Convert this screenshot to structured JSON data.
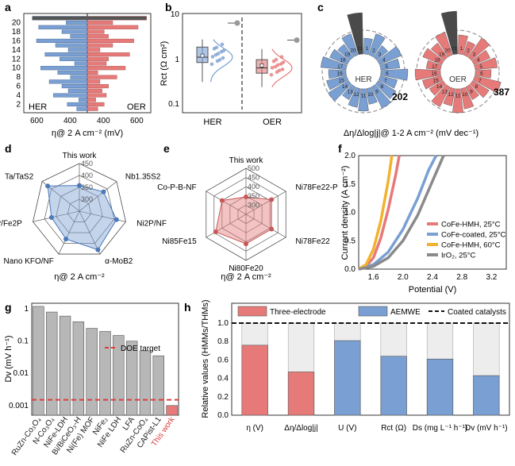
{
  "colors": {
    "red": "#e57a79",
    "blue": "#7a9fd2",
    "gray": "#b7b7b7",
    "dark": "#555555",
    "orange": "#f2b22d",
    "coatedgray": "#8a8a8a"
  },
  "panels": [
    "a",
    "b",
    "c",
    "d",
    "e",
    "f",
    "g",
    "h"
  ],
  "chart_data": [
    {
      "panel": "a",
      "type": "bar",
      "orientation": "horizontal",
      "title": "",
      "xlabel": "η@ 2 A cm⁻² (mV)",
      "ylabel": "",
      "ytick_labels": [
        "2",
        "4",
        "6",
        "8",
        "10",
        "12",
        "14",
        "16",
        "18",
        "20"
      ],
      "xtick_labels": [
        "600",
        "400",
        "400",
        "600"
      ],
      "series": [
        {
          "name": "HER",
          "values": [
            430,
            475,
            420,
            540,
            470,
            500,
            560,
            460,
            520,
            600,
            440,
            510,
            580,
            470,
            530,
            620,
            460,
            500,
            610,
            480,
            640
          ]
        },
        {
          "name": "OER",
          "values": [
            430,
            460,
            420,
            470,
            450,
            480,
            440,
            520,
            430,
            560,
            470,
            480,
            580,
            440,
            500,
            600,
            480,
            460,
            620,
            500,
            660
          ]
        }
      ],
      "annotations": [
        "HER",
        "OER"
      ]
    },
    {
      "panel": "b",
      "type": "scatter",
      "title": "",
      "ylabel": "Rct (Ω cm²)",
      "yscale": "log",
      "ylim": [
        0.1,
        10
      ],
      "ytick_labels": [
        "0.1",
        "1",
        "10"
      ],
      "categories": [
        "HER",
        "OER"
      ],
      "box": [
        {
          "name": "HER",
          "q1": 0.95,
          "median": 1.25,
          "q3": 2.1,
          "min": 0.35,
          "max": 3.1,
          "mean": 1.35
        },
        {
          "name": "OER",
          "q1": 0.55,
          "median": 0.72,
          "q3": 1.1,
          "min": 0.27,
          "max": 1.9,
          "mean": 0.82
        }
      ],
      "this_work": [
        {
          "name": "HER",
          "value": 7.2
        },
        {
          "name": "OER",
          "value": 3.0
        }
      ]
    },
    {
      "panel": "c",
      "type": "bar",
      "subtype": "radial",
      "title": "",
      "xlabel": "Δη/Δlog|j|@ 1-2 A cm⁻² (mV dec⁻¹)",
      "series": [
        {
          "name": "HER",
          "labels": [
            "1",
            "2",
            "3",
            "4",
            "5",
            "6",
            "7",
            "8",
            "9",
            "10",
            "11",
            "12",
            "13",
            "14",
            "15",
            "16",
            "17",
            "18",
            "19",
            "20",
            "21"
          ],
          "highlight": "202"
        },
        {
          "name": "OER",
          "labels": [
            "1",
            "2",
            "3",
            "4",
            "5",
            "6",
            "7",
            "8",
            "9",
            "10",
            "11",
            "12",
            "13",
            "14",
            "15",
            "16",
            "17",
            "18",
            "19",
            "20",
            "21"
          ],
          "highlight": "387"
        }
      ]
    },
    {
      "panel": "d",
      "type": "radar",
      "title": "",
      "xlabel": "η@ 2 A cm⁻²",
      "axes": [
        "This work",
        "Nb1.35S2",
        "Ni2P/NF",
        "α-MoB2",
        "Nano KFO/NF",
        "F-Co2P/Fe2P",
        "Ta/TaS2"
      ],
      "rticks": [
        "300",
        "350",
        "400",
        "450"
      ],
      "rlim": [
        250,
        450
      ],
      "values": [
        358,
        380,
        410,
        430,
        380,
        370,
        420
      ]
    },
    {
      "panel": "e",
      "type": "radar",
      "title": "",
      "xlabel": "η@ 2 A cm⁻²",
      "axes": [
        "This work",
        "Ni78Fe22-P",
        "Ni78Fe22",
        "Ni80Fe20",
        "Ni85Fe15",
        "Co-P-B-NF"
      ],
      "rticks": [
        "300",
        "350",
        "400",
        "450",
        "500"
      ],
      "rlim": [
        250,
        500
      ],
      "values": [
        345,
        410,
        410,
        410,
        440,
        400
      ]
    },
    {
      "panel": "f",
      "type": "line",
      "title": "",
      "xlabel": "Potential (V)",
      "ylabel": "Current density (A cm⁻²)",
      "xlim": [
        1.4,
        3.4
      ],
      "ylim": [
        0,
        2.0
      ],
      "xtick_labels": [
        "1.6",
        "2.0",
        "2.4",
        "2.8",
        "3.2"
      ],
      "ytick_labels": [
        "0.0",
        "0.5",
        "1.0",
        "1.5",
        "2.0"
      ],
      "series": [
        {
          "name": "CoFe-HMH, 25°C",
          "x": [
            1.4,
            1.5,
            1.6,
            1.7,
            1.8,
            1.9,
            1.95
          ],
          "y": [
            0.0,
            0.05,
            0.2,
            0.55,
            1.05,
            1.65,
            2.0
          ]
        },
        {
          "name": "CoFe-coated, 25°C",
          "x": [
            1.4,
            1.6,
            1.8,
            2.0,
            2.2,
            2.35,
            2.45
          ],
          "y": [
            0.0,
            0.08,
            0.3,
            0.7,
            1.25,
            1.75,
            2.0
          ]
        },
        {
          "name": "CoFe-HMH, 60°C",
          "x": [
            1.4,
            1.5,
            1.6,
            1.7,
            1.8,
            1.85
          ],
          "y": [
            0.0,
            0.08,
            0.35,
            0.85,
            1.55,
            2.0
          ]
        },
        {
          "name": "IrO₂, 25°C",
          "x": [
            1.4,
            1.6,
            1.8,
            2.0,
            2.2,
            2.4,
            2.55
          ],
          "y": [
            0.0,
            0.05,
            0.2,
            0.5,
            0.95,
            1.55,
            2.0
          ]
        }
      ]
    },
    {
      "panel": "g",
      "type": "bar",
      "title": "",
      "ylabel": "Dv (mV h⁻¹)",
      "yscale": "log",
      "ylim": [
        0.0005,
        1.5
      ],
      "ytick_labels": [
        "0.001",
        "0.01",
        "0.1",
        "1"
      ],
      "categories": [
        "RuZn-Co₃O₄",
        "N-Co₃O₄",
        "NiFe-LDH",
        "Bi/BiCeO₃-H",
        "Ni(Fe) MOF",
        "NiFe₂",
        "NiFe LDH",
        "LFA",
        "RuZn-CoO₄",
        "CAPist-L1",
        "This work"
      ],
      "values": [
        1.2,
        0.8,
        0.6,
        0.4,
        0.25,
        0.2,
        0.15,
        0.1,
        0.05,
        0.035,
        0.001
      ],
      "reference": {
        "name": "DOE target",
        "value": 0.0015
      }
    },
    {
      "panel": "h",
      "type": "bar",
      "title": "",
      "ylabel": "Relative values (HMMs/THMs)",
      "ylim": [
        0.0,
        1.0
      ],
      "ytick_labels": [
        "0.0",
        "0.2",
        "0.4",
        "0.6",
        "0.8",
        "1.0"
      ],
      "categories": [
        "η (V)",
        "Δη/Δlog|j|",
        "U (V)",
        "Rct (Ω)",
        "Ds (mg L⁻¹ h⁻¹)",
        "Dv (mV h⁻¹)"
      ],
      "values": [
        0.76,
        0.47,
        0.81,
        0.64,
        0.61,
        0.43
      ],
      "groups": [
        "Three-electrode",
        "Three-electrode",
        "AEMWE",
        "AEMWE",
        "AEMWE",
        "AEMWE"
      ],
      "legend": [
        "Three-electrode",
        "AEMWE",
        "Coated catalysts"
      ],
      "reference": {
        "name": "Coated catalysts",
        "value": 1.0
      }
    }
  ]
}
